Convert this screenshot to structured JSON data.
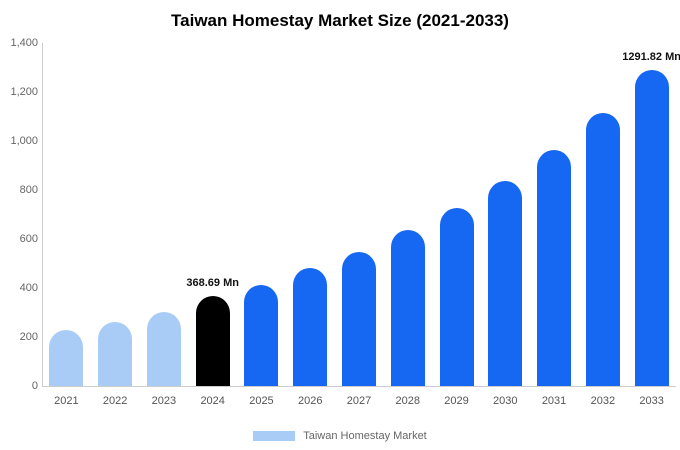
{
  "title": "Taiwan Homestay Market Size (2021-2033)",
  "legend": {
    "label": "Taiwan Homestay Market",
    "swatch_color": "#A9CCF6"
  },
  "colors": {
    "light_blue": "#A9CCF6",
    "dark_blue": "#1667F2",
    "highlight_black": "#000000",
    "axis_line": "#cccccc",
    "tick_text": "#666666"
  },
  "chart_data": {
    "type": "bar",
    "title": "Taiwan Homestay Market Size (2021-2033)",
    "xlabel": "",
    "ylabel": "",
    "ylim": [
      0,
      1400
    ],
    "ytick_labels": [
      "0",
      "200",
      "400",
      "600",
      "800",
      "1,000",
      "1,200",
      "1,400"
    ],
    "categories": [
      "2021",
      "2022",
      "2023",
      "2024",
      "2025",
      "2026",
      "2027",
      "2028",
      "2029",
      "2030",
      "2031",
      "2032",
      "2033"
    ],
    "values": [
      228,
      262,
      303,
      368.69,
      412,
      480,
      547,
      637,
      727,
      836,
      963,
      1114,
      1291.82
    ],
    "bar_colors": [
      "#A9CCF6",
      "#A9CCF6",
      "#A9CCF6",
      "#000000",
      "#1667F2",
      "#1667F2",
      "#1667F2",
      "#1667F2",
      "#1667F2",
      "#1667F2",
      "#1667F2",
      "#1667F2",
      "#1667F2"
    ],
    "annotations": [
      {
        "index": 3,
        "text": "368.69 Mn"
      },
      {
        "index": 12,
        "text": "1291.82 Mn"
      }
    ],
    "legend_entries": [
      "Taiwan Homestay Market"
    ],
    "legend_position": "bottom",
    "grid": false
  }
}
